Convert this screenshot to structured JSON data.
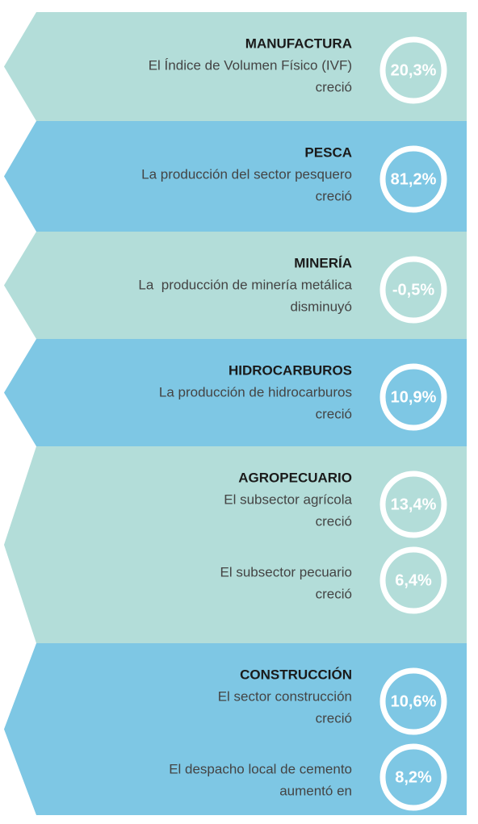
{
  "sections": [
    {
      "title": "MANUFACTURA",
      "items": [
        {
          "lines": [
            "El Índice de Volumen Físico (IVF)",
            "creció"
          ],
          "value": "20,3%"
        }
      ]
    },
    {
      "title": "PESCA",
      "items": [
        {
          "lines": [
            "La producción del sector pesquero",
            "creció"
          ],
          "value": "81,2%"
        }
      ]
    },
    {
      "title": "MINERÍA",
      "items": [
        {
          "lines": [
            "La  producción de minería metálica",
            "disminuyó"
          ],
          "value": "-0,5%"
        }
      ]
    },
    {
      "title": "HIDROCARBUROS",
      "items": [
        {
          "lines": [
            "La producción de hidrocarburos",
            "creció"
          ],
          "value": "10,9%"
        }
      ]
    },
    {
      "title": "AGROPECUARIO",
      "items": [
        {
          "lines": [
            "El subsector agrícola",
            "creció"
          ],
          "value": "13,4%"
        },
        {
          "lines": [
            "El subsector pecuario",
            "creció"
          ],
          "value": "6,4%"
        }
      ]
    },
    {
      "title": "CONSTRUCCIÓN",
      "items": [
        {
          "lines": [
            "El sector construcción",
            "creció"
          ],
          "value": "10,6%"
        },
        {
          "lines": [
            "El despacho local de cemento",
            "aumentó en"
          ],
          "value": "8,2%"
        }
      ]
    }
  ]
}
